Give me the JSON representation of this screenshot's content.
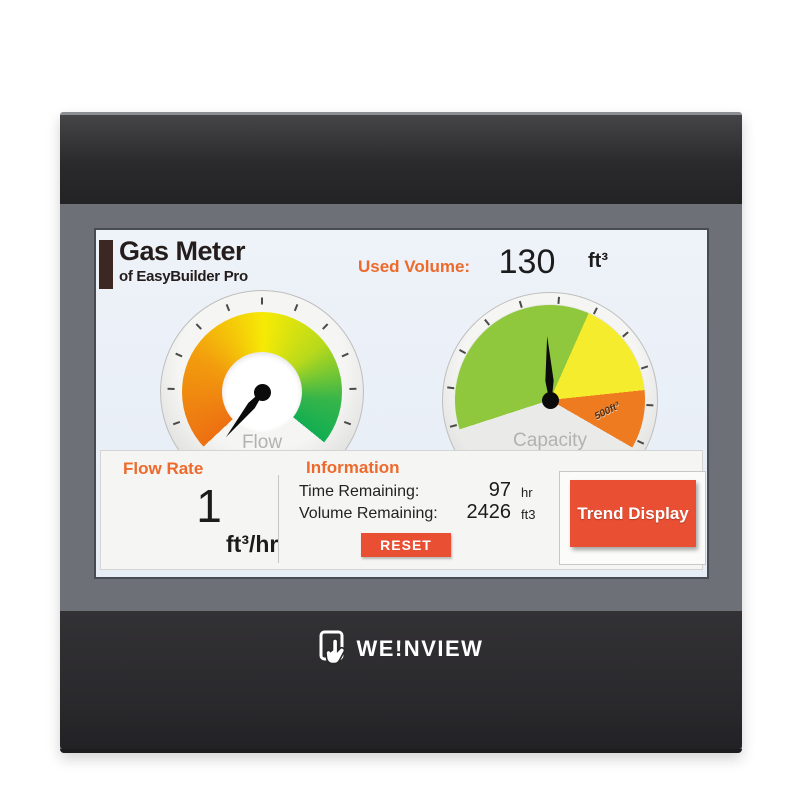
{
  "brand": {
    "logo_text": "WE!NVIEW",
    "logo_icon": "touch-panel-hand-icon"
  },
  "screen": {
    "title": "Gas Meter",
    "subtitle": "of EasyBuilder Pro",
    "used_volume": {
      "label": "Used Volume:",
      "value": "130",
      "unit": "ft³"
    },
    "flow_gauge": {
      "label": "Flow"
    },
    "capacity_gauge": {
      "label": "Capacity",
      "range_label": "500ft³"
    },
    "flow_rate": {
      "label": "Flow Rate",
      "value": "1",
      "unit": "ft³/hr"
    },
    "information": {
      "label": "Information",
      "rows": [
        {
          "label": "Time Remaining:",
          "value": "97",
          "unit": "hr"
        },
        {
          "label": "Volume Remaining:",
          "value": "2426",
          "unit": "ft3"
        }
      ],
      "reset_label": "RESET"
    },
    "trend_button_label": "Trend Display"
  },
  "colors": {
    "accent_orange": "#ed6a2c",
    "button_red": "#e84f33",
    "gauge_green": "#8fc73d",
    "gauge_yellow": "#f5ec2e",
    "gauge_orange": "#ee7b20",
    "bezel_dark": "#2a2a2c",
    "frame_gray": "#6d7177"
  }
}
